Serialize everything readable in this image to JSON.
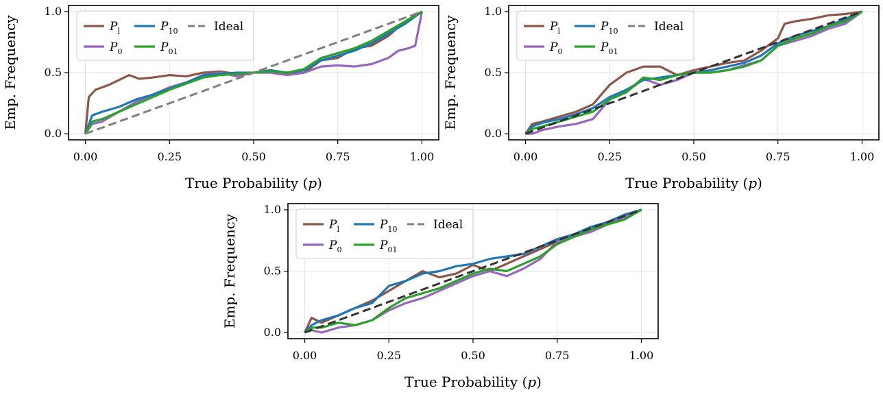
{
  "figure": {
    "xlabel": "True Probability (",
    "xlabel_var": "p",
    "xlabel_close": ")",
    "ylabel": "Emp. Frequency"
  },
  "colors": {
    "P_l": "#8c564b",
    "P_0": "#9467bd",
    "P_10": "#1f77b4",
    "P_01": "#2ca02c",
    "Ideal": "#7f7f7f"
  },
  "chart_data": [
    {
      "type": "line",
      "xlabel": "True Probability (p)",
      "ylabel": "Emp. Frequency",
      "xlim": [
        -0.05,
        1.05
      ],
      "ylim": [
        -0.05,
        1.05
      ],
      "xticks": [
        "0.00",
        "0.25",
        "0.50",
        "0.75",
        "1.00"
      ],
      "yticks": [
        "0.0",
        "0.5",
        "1.0"
      ],
      "grid": true,
      "legend_position": "top-left",
      "series": [
        {
          "name": "P_l",
          "x": [
            0,
            0.01,
            0.03,
            0.05,
            0.07,
            0.1,
            0.13,
            0.16,
            0.2,
            0.25,
            0.3,
            0.35,
            0.4,
            0.45,
            0.5,
            0.55,
            0.6,
            0.65,
            0.7,
            0.75,
            0.8,
            0.85,
            0.9,
            0.95,
            1.0
          ],
          "y": [
            0.0,
            0.3,
            0.36,
            0.38,
            0.4,
            0.44,
            0.48,
            0.45,
            0.46,
            0.48,
            0.47,
            0.5,
            0.51,
            0.49,
            0.5,
            0.52,
            0.49,
            0.5,
            0.6,
            0.62,
            0.7,
            0.72,
            0.8,
            0.92,
            1.0
          ]
        },
        {
          "name": "P_0",
          "x": [
            0,
            0.02,
            0.05,
            0.1,
            0.15,
            0.2,
            0.25,
            0.3,
            0.35,
            0.4,
            0.45,
            0.5,
            0.55,
            0.6,
            0.65,
            0.7,
            0.75,
            0.8,
            0.85,
            0.9,
            0.93,
            0.96,
            0.98,
            1.0
          ],
          "y": [
            0.0,
            0.08,
            0.1,
            0.18,
            0.26,
            0.32,
            0.38,
            0.42,
            0.48,
            0.5,
            0.47,
            0.5,
            0.5,
            0.48,
            0.5,
            0.55,
            0.56,
            0.55,
            0.57,
            0.62,
            0.68,
            0.7,
            0.72,
            1.0
          ]
        },
        {
          "name": "P_10",
          "x": [
            0,
            0.02,
            0.05,
            0.1,
            0.15,
            0.2,
            0.25,
            0.3,
            0.35,
            0.4,
            0.45,
            0.5,
            0.55,
            0.6,
            0.65,
            0.7,
            0.75,
            0.8,
            0.85,
            0.9,
            0.95,
            1.0
          ],
          "y": [
            0.0,
            0.15,
            0.18,
            0.22,
            0.28,
            0.32,
            0.37,
            0.42,
            0.48,
            0.49,
            0.5,
            0.5,
            0.52,
            0.5,
            0.52,
            0.6,
            0.64,
            0.68,
            0.74,
            0.82,
            0.9,
            1.0
          ]
        },
        {
          "name": "P_01",
          "x": [
            0,
            0.02,
            0.05,
            0.1,
            0.15,
            0.2,
            0.25,
            0.3,
            0.35,
            0.4,
            0.45,
            0.5,
            0.55,
            0.6,
            0.65,
            0.7,
            0.75,
            0.8,
            0.85,
            0.9,
            0.95,
            1.0
          ],
          "y": [
            0.0,
            0.1,
            0.12,
            0.18,
            0.24,
            0.3,
            0.36,
            0.41,
            0.46,
            0.48,
            0.49,
            0.5,
            0.51,
            0.5,
            0.53,
            0.62,
            0.66,
            0.7,
            0.76,
            0.84,
            0.92,
            1.0
          ]
        },
        {
          "name": "Ideal",
          "x": [
            0,
            1
          ],
          "y": [
            0,
            1
          ]
        }
      ]
    },
    {
      "type": "line",
      "xlabel": "True Probability (p)",
      "ylabel": "Emp. Frequency",
      "xlim": [
        -0.05,
        1.05
      ],
      "ylim": [
        -0.05,
        1.05
      ],
      "xticks": [
        "0.00",
        "0.25",
        "0.50",
        "0.75",
        "1.00"
      ],
      "yticks": [
        "0.0",
        "0.5",
        "1.0"
      ],
      "grid": true,
      "legend_position": "top-left",
      "series": [
        {
          "name": "P_l",
          "x": [
            0,
            0.02,
            0.05,
            0.1,
            0.15,
            0.2,
            0.25,
            0.28,
            0.3,
            0.35,
            0.4,
            0.45,
            0.5,
            0.55,
            0.6,
            0.65,
            0.7,
            0.75,
            0.77,
            0.8,
            0.85,
            0.9,
            0.95,
            1.0
          ],
          "y": [
            0.0,
            0.08,
            0.1,
            0.14,
            0.18,
            0.24,
            0.4,
            0.46,
            0.5,
            0.55,
            0.55,
            0.48,
            0.52,
            0.55,
            0.58,
            0.6,
            0.68,
            0.78,
            0.9,
            0.92,
            0.94,
            0.97,
            0.98,
            1.0
          ]
        },
        {
          "name": "P_0",
          "x": [
            0,
            0.02,
            0.05,
            0.1,
            0.15,
            0.2,
            0.25,
            0.3,
            0.35,
            0.4,
            0.45,
            0.5,
            0.55,
            0.6,
            0.65,
            0.7,
            0.75,
            0.8,
            0.85,
            0.9,
            0.95,
            1.0
          ],
          "y": [
            0.0,
            0.0,
            0.03,
            0.06,
            0.08,
            0.12,
            0.28,
            0.34,
            0.45,
            0.4,
            0.44,
            0.5,
            0.5,
            0.52,
            0.56,
            0.6,
            0.72,
            0.76,
            0.8,
            0.86,
            0.9,
            1.0
          ]
        },
        {
          "name": "P_10",
          "x": [
            0,
            0.02,
            0.05,
            0.1,
            0.15,
            0.2,
            0.25,
            0.3,
            0.35,
            0.4,
            0.45,
            0.5,
            0.55,
            0.6,
            0.65,
            0.7,
            0.75,
            0.8,
            0.85,
            0.9,
            0.95,
            1.0
          ],
          "y": [
            0.0,
            0.06,
            0.09,
            0.12,
            0.16,
            0.21,
            0.3,
            0.36,
            0.44,
            0.46,
            0.48,
            0.5,
            0.52,
            0.55,
            0.58,
            0.64,
            0.74,
            0.8,
            0.84,
            0.88,
            0.94,
            1.0
          ]
        },
        {
          "name": "P_01",
          "x": [
            0,
            0.02,
            0.05,
            0.1,
            0.15,
            0.2,
            0.25,
            0.3,
            0.35,
            0.4,
            0.45,
            0.5,
            0.55,
            0.6,
            0.65,
            0.7,
            0.75,
            0.8,
            0.85,
            0.9,
            0.95,
            1.0
          ],
          "y": [
            0.0,
            0.04,
            0.06,
            0.1,
            0.14,
            0.18,
            0.28,
            0.34,
            0.46,
            0.44,
            0.48,
            0.5,
            0.5,
            0.52,
            0.55,
            0.6,
            0.72,
            0.78,
            0.82,
            0.88,
            0.92,
            1.0
          ]
        },
        {
          "name": "Ideal",
          "x": [
            0,
            1
          ],
          "y": [
            0,
            1
          ]
        }
      ]
    },
    {
      "type": "line",
      "xlabel": "True Probability (p)",
      "ylabel": "Emp. Frequency",
      "xlim": [
        -0.05,
        1.05
      ],
      "ylim": [
        -0.05,
        1.05
      ],
      "xticks": [
        "0.00",
        "0.25",
        "0.50",
        "0.75",
        "1.00"
      ],
      "yticks": [
        "0.0",
        "0.5",
        "1.0"
      ],
      "grid": true,
      "legend_position": "top-left",
      "series": [
        {
          "name": "P_l",
          "x": [
            0,
            0.02,
            0.05,
            0.1,
            0.15,
            0.2,
            0.25,
            0.3,
            0.35,
            0.4,
            0.45,
            0.5,
            0.55,
            0.6,
            0.65,
            0.7,
            0.75,
            0.8,
            0.85,
            0.9,
            0.95,
            1.0
          ],
          "y": [
            0.0,
            0.12,
            0.08,
            0.14,
            0.2,
            0.26,
            0.34,
            0.42,
            0.5,
            0.45,
            0.48,
            0.55,
            0.5,
            0.56,
            0.62,
            0.68,
            0.74,
            0.8,
            0.84,
            0.9,
            0.95,
            1.0
          ]
        },
        {
          "name": "P_0",
          "x": [
            0,
            0.02,
            0.05,
            0.1,
            0.15,
            0.2,
            0.25,
            0.3,
            0.35,
            0.4,
            0.45,
            0.5,
            0.55,
            0.6,
            0.65,
            0.7,
            0.75,
            0.8,
            0.85,
            0.9,
            0.95,
            1.0
          ],
          "y": [
            0.0,
            0.02,
            0.0,
            0.04,
            0.06,
            0.1,
            0.18,
            0.24,
            0.28,
            0.34,
            0.4,
            0.46,
            0.5,
            0.46,
            0.52,
            0.6,
            0.74,
            0.78,
            0.82,
            0.88,
            0.94,
            1.0
          ]
        },
        {
          "name": "P_10",
          "x": [
            0,
            0.02,
            0.05,
            0.1,
            0.15,
            0.2,
            0.25,
            0.3,
            0.35,
            0.4,
            0.45,
            0.5,
            0.55,
            0.6,
            0.65,
            0.7,
            0.75,
            0.8,
            0.85,
            0.9,
            0.95,
            1.0
          ],
          "y": [
            0.0,
            0.06,
            0.1,
            0.14,
            0.2,
            0.24,
            0.38,
            0.42,
            0.48,
            0.5,
            0.54,
            0.56,
            0.6,
            0.62,
            0.64,
            0.7,
            0.76,
            0.8,
            0.86,
            0.9,
            0.96,
            1.0
          ]
        },
        {
          "name": "P_01",
          "x": [
            0,
            0.02,
            0.05,
            0.1,
            0.15,
            0.2,
            0.25,
            0.3,
            0.35,
            0.4,
            0.45,
            0.5,
            0.55,
            0.6,
            0.65,
            0.7,
            0.75,
            0.8,
            0.85,
            0.9,
            0.95,
            1.0
          ],
          "y": [
            0.0,
            0.04,
            0.04,
            0.08,
            0.06,
            0.1,
            0.2,
            0.28,
            0.32,
            0.36,
            0.42,
            0.48,
            0.52,
            0.5,
            0.56,
            0.62,
            0.72,
            0.78,
            0.84,
            0.88,
            0.92,
            1.0
          ]
        },
        {
          "name": "Ideal",
          "x": [
            0,
            1
          ],
          "y": [
            0,
            1
          ]
        }
      ]
    }
  ]
}
